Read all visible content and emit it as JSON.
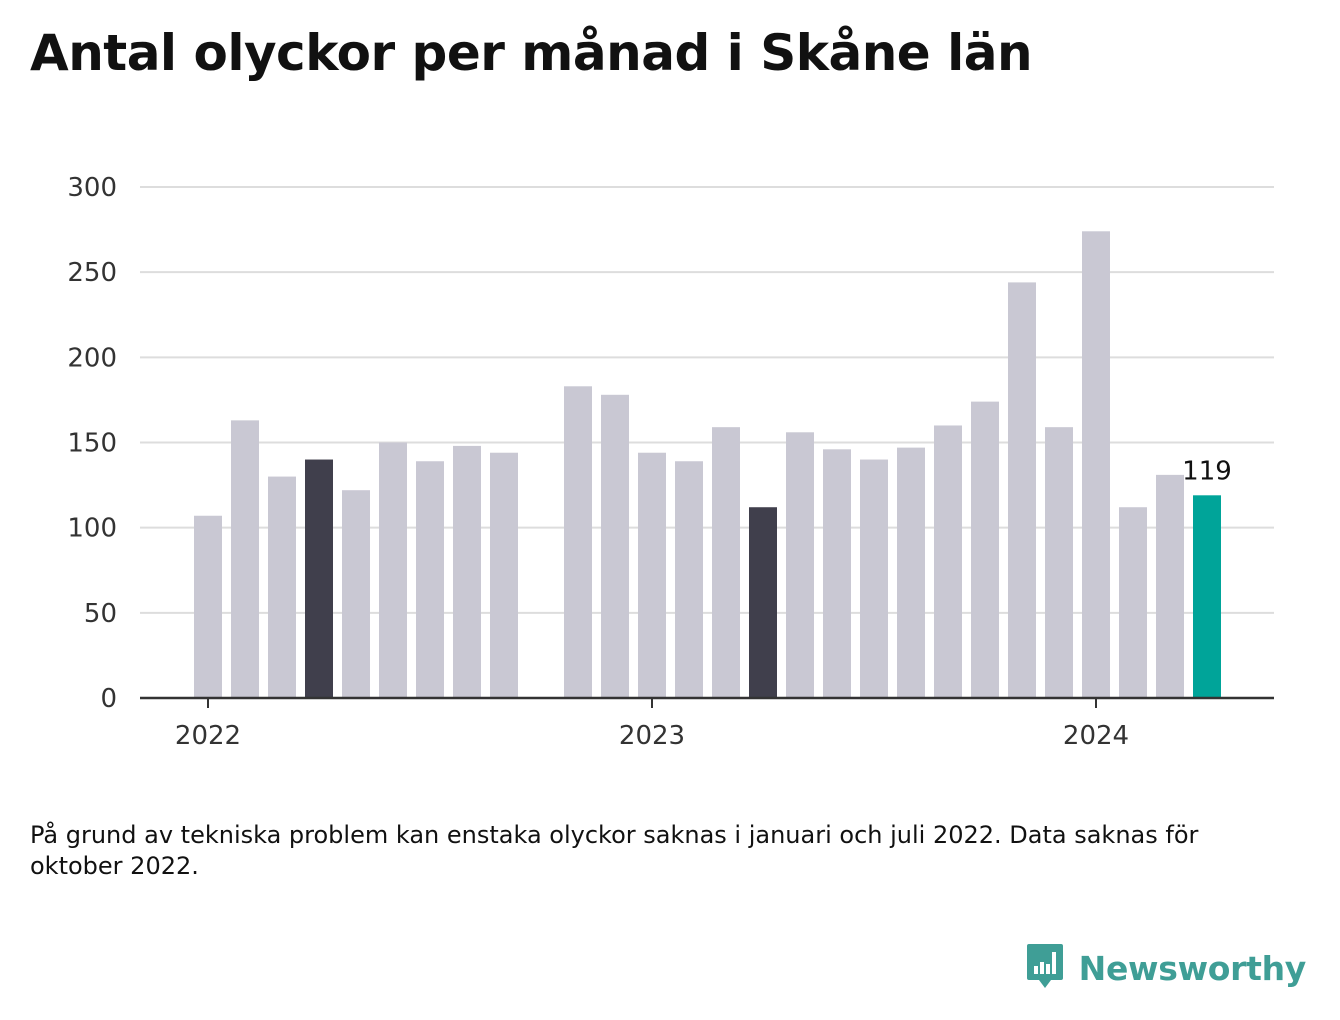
{
  "title": "Antal olyckor per månad i Skåne län",
  "footnote": "På grund av tekniska problem kan enstaka olyckor saknas i januari och juli 2022. Data saknas för oktober 2022.",
  "brand": {
    "name": "Newsworthy",
    "logo_icon": "bar-chart-speech-bubble-icon"
  },
  "colors": {
    "bar_default": "#c9c8d3",
    "bar_highlight": "#403f4c",
    "bar_current": "#00a499",
    "gridline": "#dddddd",
    "axis": "#333333",
    "brand": "#3f9e96"
  },
  "chart_data": {
    "type": "bar",
    "title": "Antal olyckor per månad i Skåne län",
    "xlabel": "",
    "ylabel": "",
    "ylim": [
      0,
      300
    ],
    "yticks": [
      0,
      50,
      100,
      150,
      200,
      250,
      300
    ],
    "xticks": [
      {
        "label": "2022",
        "month": "2022-01"
      },
      {
        "label": "2023",
        "month": "2023-01"
      },
      {
        "label": "2024",
        "month": "2024-01"
      }
    ],
    "grid": true,
    "legend": "none",
    "bars": [
      {
        "month": "2022-01",
        "value": 107,
        "style": "default"
      },
      {
        "month": "2022-02",
        "value": 163,
        "style": "default"
      },
      {
        "month": "2022-03",
        "value": 130,
        "style": "default"
      },
      {
        "month": "2022-04",
        "value": 140,
        "style": "highlight"
      },
      {
        "month": "2022-05",
        "value": 122,
        "style": "default"
      },
      {
        "month": "2022-06",
        "value": 150,
        "style": "default"
      },
      {
        "month": "2022-07",
        "value": 139,
        "style": "default"
      },
      {
        "month": "2022-08",
        "value": 148,
        "style": "default"
      },
      {
        "month": "2022-09",
        "value": 144,
        "style": "default"
      },
      {
        "month": "2022-10",
        "value": null,
        "style": "missing"
      },
      {
        "month": "2022-11",
        "value": 183,
        "style": "default"
      },
      {
        "month": "2022-12",
        "value": 178,
        "style": "default"
      },
      {
        "month": "2023-01",
        "value": 144,
        "style": "default"
      },
      {
        "month": "2023-02",
        "value": 139,
        "style": "default"
      },
      {
        "month": "2023-03",
        "value": 159,
        "style": "default"
      },
      {
        "month": "2023-04",
        "value": 112,
        "style": "highlight"
      },
      {
        "month": "2023-05",
        "value": 156,
        "style": "default"
      },
      {
        "month": "2023-06",
        "value": 146,
        "style": "default"
      },
      {
        "month": "2023-07",
        "value": 140,
        "style": "default"
      },
      {
        "month": "2023-08",
        "value": 147,
        "style": "default"
      },
      {
        "month": "2023-09",
        "value": 160,
        "style": "default"
      },
      {
        "month": "2023-10",
        "value": 174,
        "style": "default"
      },
      {
        "month": "2023-11",
        "value": 244,
        "style": "default"
      },
      {
        "month": "2023-12",
        "value": 159,
        "style": "default"
      },
      {
        "month": "2024-01",
        "value": 274,
        "style": "default"
      },
      {
        "month": "2024-02",
        "value": 112,
        "style": "default"
      },
      {
        "month": "2024-03",
        "value": 131,
        "style": "default"
      },
      {
        "month": "2024-04",
        "value": 119,
        "style": "current",
        "label": "119"
      }
    ]
  }
}
